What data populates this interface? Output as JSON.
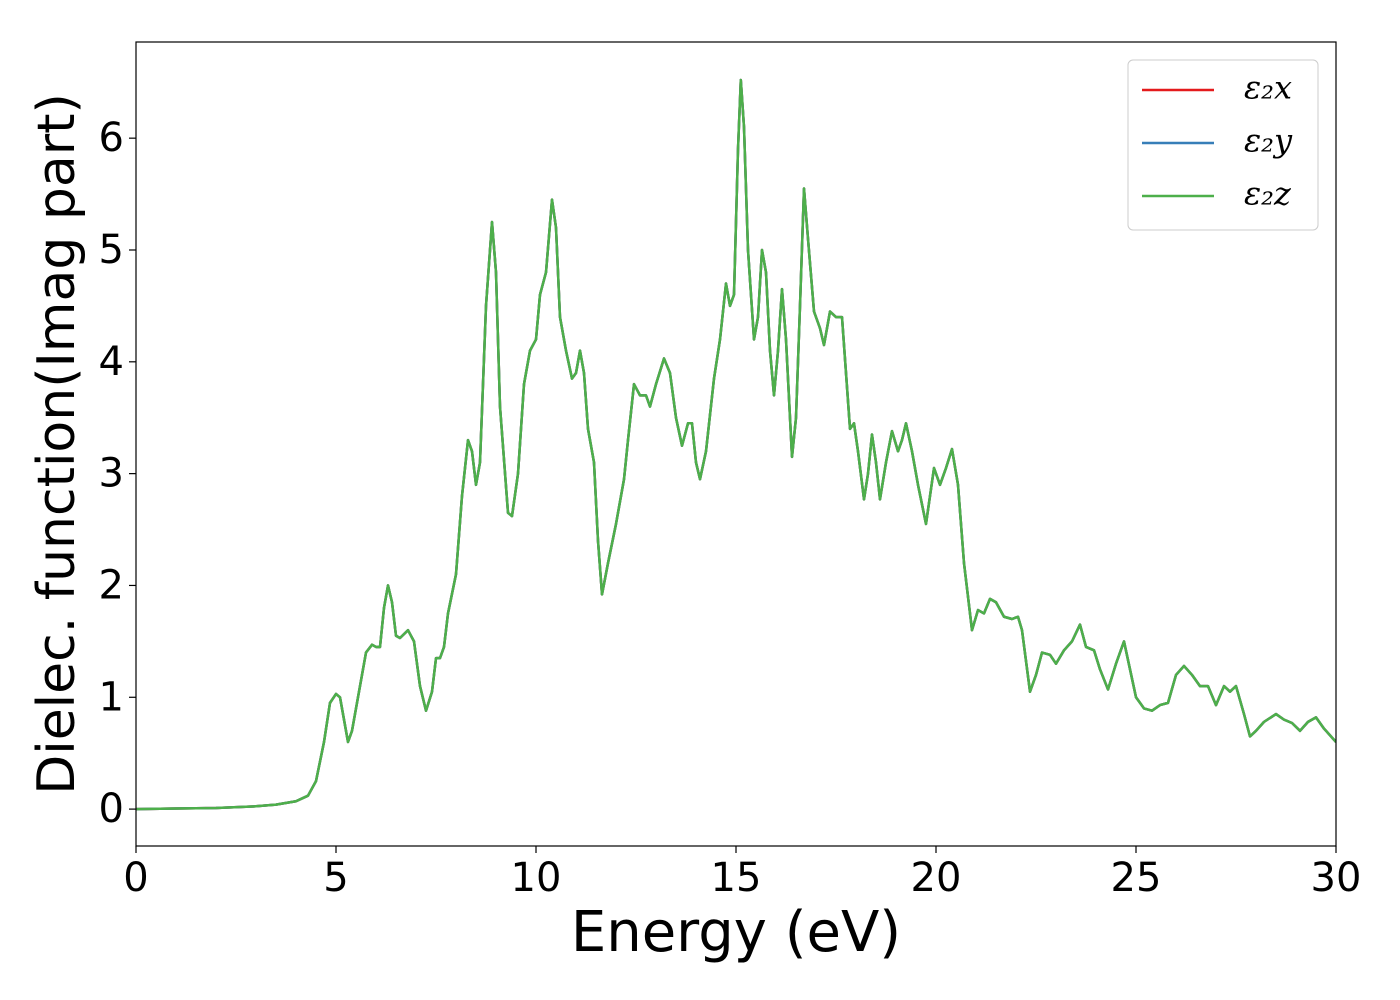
{
  "chart_data": {
    "type": "line",
    "x_label": "Energy (eV)",
    "y_label": "Dielec. function(Imag part)",
    "xlim": [
      0,
      30
    ],
    "ylim": [
      -0.33,
      6.86
    ],
    "xticks": [
      0,
      5,
      10,
      15,
      20,
      25,
      30
    ],
    "yticks": [
      0,
      1,
      2,
      3,
      4,
      5,
      6
    ],
    "legend": "upper right",
    "x": [
      0,
      1,
      2,
      3,
      3.5,
      4,
      4.3,
      4.5,
      4.7,
      4.85,
      5.0,
      5.1,
      5.2,
      5.3,
      5.4,
      5.6,
      5.75,
      5.9,
      6.0,
      6.1,
      6.2,
      6.3,
      6.4,
      6.5,
      6.6,
      6.8,
      6.95,
      7.1,
      7.25,
      7.4,
      7.5,
      7.6,
      7.7,
      7.8,
      8.0,
      8.15,
      8.3,
      8.4,
      8.5,
      8.6,
      8.75,
      8.9,
      9.0,
      9.1,
      9.3,
      9.4,
      9.55,
      9.7,
      9.85,
      10.0,
      10.1,
      10.25,
      10.4,
      10.5,
      10.6,
      10.75,
      10.9,
      11.0,
      11.1,
      11.2,
      11.3,
      11.45,
      11.55,
      11.65,
      11.8,
      12.0,
      12.2,
      12.3,
      12.45,
      12.6,
      12.75,
      12.85,
      13.0,
      13.2,
      13.35,
      13.5,
      13.65,
      13.8,
      13.9,
      14.0,
      14.1,
      14.25,
      14.45,
      14.6,
      14.75,
      14.85,
      14.95,
      15.05,
      15.12,
      15.2,
      15.3,
      15.45,
      15.55,
      15.65,
      15.75,
      15.85,
      15.95,
      16.05,
      16.15,
      16.25,
      16.4,
      16.5,
      16.6,
      16.7,
      16.8,
      16.95,
      17.1,
      17.2,
      17.35,
      17.5,
      17.65,
      17.75,
      17.85,
      17.95,
      18.05,
      18.2,
      18.3,
      18.4,
      18.5,
      18.6,
      18.75,
      18.9,
      19.05,
      19.15,
      19.25,
      19.4,
      19.55,
      19.75,
      19.85,
      19.95,
      20.1,
      20.25,
      20.4,
      20.55,
      20.7,
      20.9,
      21.05,
      21.2,
      21.35,
      21.5,
      21.7,
      21.9,
      22.05,
      22.15,
      22.35,
      22.5,
      22.65,
      22.85,
      23.0,
      23.2,
      23.4,
      23.6,
      23.75,
      23.95,
      24.1,
      24.3,
      24.5,
      24.7,
      24.85,
      25.0,
      25.2,
      25.4,
      25.6,
      25.8,
      26.0,
      26.2,
      26.4,
      26.6,
      26.8,
      27.0,
      27.2,
      27.35,
      27.5,
      27.7,
      27.85,
      28.0,
      28.2,
      28.5,
      28.7,
      28.9,
      29.1,
      29.3,
      29.5,
      29.7,
      30.0
    ],
    "series": [
      {
        "name": "ε₂x",
        "color": "#e41a1c",
        "values": [
          0.0,
          0.005,
          0.01,
          0.025,
          0.04,
          0.07,
          0.12,
          0.25,
          0.6,
          0.95,
          1.03,
          1.0,
          0.8,
          0.6,
          0.7,
          1.1,
          1.4,
          1.47,
          1.45,
          1.45,
          1.8,
          2.0,
          1.85,
          1.55,
          1.53,
          1.6,
          1.5,
          1.1,
          0.88,
          1.05,
          1.35,
          1.35,
          1.45,
          1.75,
          2.1,
          2.8,
          3.3,
          3.2,
          2.9,
          3.1,
          4.5,
          5.25,
          4.8,
          3.6,
          2.65,
          2.62,
          3.0,
          3.8,
          4.1,
          4.2,
          4.6,
          4.8,
          5.45,
          5.2,
          4.4,
          4.1,
          3.85,
          3.9,
          4.1,
          3.9,
          3.4,
          3.1,
          2.4,
          1.92,
          2.2,
          2.55,
          2.95,
          3.3,
          3.8,
          3.7,
          3.7,
          3.6,
          3.8,
          4.03,
          3.9,
          3.5,
          3.25,
          3.45,
          3.45,
          3.1,
          2.95,
          3.2,
          3.85,
          4.2,
          4.7,
          4.5,
          4.6,
          5.9,
          6.52,
          6.1,
          5.0,
          4.2,
          4.4,
          5.0,
          4.8,
          4.1,
          3.7,
          4.1,
          4.65,
          4.2,
          3.15,
          3.5,
          4.5,
          5.55,
          5.1,
          4.45,
          4.3,
          4.15,
          4.45,
          4.4,
          4.4,
          3.9,
          3.4,
          3.45,
          3.2,
          2.77,
          3.0,
          3.35,
          3.1,
          2.77,
          3.1,
          3.38,
          3.2,
          3.3,
          3.45,
          3.2,
          2.9,
          2.55,
          2.8,
          3.05,
          2.9,
          3.05,
          3.22,
          2.9,
          2.2,
          1.6,
          1.78,
          1.75,
          1.88,
          1.85,
          1.72,
          1.7,
          1.72,
          1.6,
          1.05,
          1.2,
          1.4,
          1.38,
          1.3,
          1.42,
          1.5,
          1.65,
          1.45,
          1.42,
          1.25,
          1.07,
          1.3,
          1.5,
          1.25,
          1.0,
          0.9,
          0.88,
          0.93,
          0.95,
          1.2,
          1.28,
          1.2,
          1.1,
          1.1,
          0.93,
          1.1,
          1.05,
          1.1,
          0.85,
          0.65,
          0.7,
          0.78,
          0.85,
          0.8,
          0.77,
          0.7,
          0.78,
          0.82,
          0.72,
          0.6
        ]
      },
      {
        "name": "ε₂y",
        "color": "#377eb8",
        "values": [
          0.0,
          0.005,
          0.01,
          0.025,
          0.04,
          0.07,
          0.12,
          0.25,
          0.6,
          0.95,
          1.03,
          1.0,
          0.8,
          0.6,
          0.7,
          1.1,
          1.4,
          1.47,
          1.45,
          1.45,
          1.8,
          2.0,
          1.85,
          1.55,
          1.53,
          1.6,
          1.5,
          1.1,
          0.88,
          1.05,
          1.35,
          1.35,
          1.45,
          1.75,
          2.1,
          2.8,
          3.3,
          3.2,
          2.9,
          3.1,
          4.5,
          5.25,
          4.8,
          3.6,
          2.65,
          2.62,
          3.0,
          3.8,
          4.1,
          4.2,
          4.6,
          4.8,
          5.45,
          5.2,
          4.4,
          4.1,
          3.85,
          3.9,
          4.1,
          3.9,
          3.4,
          3.1,
          2.4,
          1.92,
          2.2,
          2.55,
          2.95,
          3.3,
          3.8,
          3.7,
          3.7,
          3.6,
          3.8,
          4.03,
          3.9,
          3.5,
          3.25,
          3.45,
          3.45,
          3.1,
          2.95,
          3.2,
          3.85,
          4.2,
          4.7,
          4.5,
          4.6,
          5.9,
          6.52,
          6.1,
          5.0,
          4.2,
          4.4,
          5.0,
          4.8,
          4.1,
          3.7,
          4.1,
          4.65,
          4.2,
          3.15,
          3.5,
          4.5,
          5.55,
          5.1,
          4.45,
          4.3,
          4.15,
          4.45,
          4.4,
          4.4,
          3.9,
          3.4,
          3.45,
          3.2,
          2.77,
          3.0,
          3.35,
          3.1,
          2.77,
          3.1,
          3.38,
          3.2,
          3.3,
          3.45,
          3.2,
          2.9,
          2.55,
          2.8,
          3.05,
          2.9,
          3.05,
          3.22,
          2.9,
          2.2,
          1.6,
          1.78,
          1.75,
          1.88,
          1.85,
          1.72,
          1.7,
          1.72,
          1.6,
          1.05,
          1.2,
          1.4,
          1.38,
          1.3,
          1.42,
          1.5,
          1.65,
          1.45,
          1.42,
          1.25,
          1.07,
          1.3,
          1.5,
          1.25,
          1.0,
          0.9,
          0.88,
          0.93,
          0.95,
          1.2,
          1.28,
          1.2,
          1.1,
          1.1,
          0.93,
          1.1,
          1.05,
          1.1,
          0.85,
          0.65,
          0.7,
          0.78,
          0.85,
          0.8,
          0.77,
          0.7,
          0.78,
          0.82,
          0.72,
          0.6
        ]
      },
      {
        "name": "ε₂z",
        "color": "#4daf4a",
        "values": [
          0.0,
          0.005,
          0.01,
          0.025,
          0.04,
          0.07,
          0.12,
          0.25,
          0.6,
          0.95,
          1.03,
          1.0,
          0.8,
          0.6,
          0.7,
          1.1,
          1.4,
          1.47,
          1.45,
          1.45,
          1.8,
          2.0,
          1.85,
          1.55,
          1.53,
          1.6,
          1.5,
          1.1,
          0.88,
          1.05,
          1.35,
          1.35,
          1.45,
          1.75,
          2.1,
          2.8,
          3.3,
          3.2,
          2.9,
          3.1,
          4.5,
          5.25,
          4.8,
          3.6,
          2.65,
          2.62,
          3.0,
          3.8,
          4.1,
          4.2,
          4.6,
          4.8,
          5.45,
          5.2,
          4.4,
          4.1,
          3.85,
          3.9,
          4.1,
          3.9,
          3.4,
          3.1,
          2.4,
          1.92,
          2.2,
          2.55,
          2.95,
          3.3,
          3.8,
          3.7,
          3.7,
          3.6,
          3.8,
          4.03,
          3.9,
          3.5,
          3.25,
          3.45,
          3.45,
          3.1,
          2.95,
          3.2,
          3.85,
          4.2,
          4.7,
          4.5,
          4.6,
          5.9,
          6.52,
          6.1,
          5.0,
          4.2,
          4.4,
          5.0,
          4.8,
          4.1,
          3.7,
          4.1,
          4.65,
          4.2,
          3.15,
          3.5,
          4.5,
          5.55,
          5.1,
          4.45,
          4.3,
          4.15,
          4.45,
          4.4,
          4.4,
          3.9,
          3.4,
          3.45,
          3.2,
          2.77,
          3.0,
          3.35,
          3.1,
          2.77,
          3.1,
          3.38,
          3.2,
          3.3,
          3.45,
          3.2,
          2.9,
          2.55,
          2.8,
          3.05,
          2.9,
          3.05,
          3.22,
          2.9,
          2.2,
          1.6,
          1.78,
          1.75,
          1.88,
          1.85,
          1.72,
          1.7,
          1.72,
          1.6,
          1.05,
          1.2,
          1.4,
          1.38,
          1.3,
          1.42,
          1.5,
          1.65,
          1.45,
          1.42,
          1.25,
          1.07,
          1.3,
          1.5,
          1.25,
          1.0,
          0.9,
          0.88,
          0.93,
          0.95,
          1.2,
          1.28,
          1.2,
          1.1,
          1.1,
          0.93,
          1.1,
          1.05,
          1.1,
          0.85,
          0.65,
          0.7,
          0.78,
          0.85,
          0.8,
          0.77,
          0.7,
          0.78,
          0.82,
          0.72,
          0.6
        ]
      }
    ]
  }
}
